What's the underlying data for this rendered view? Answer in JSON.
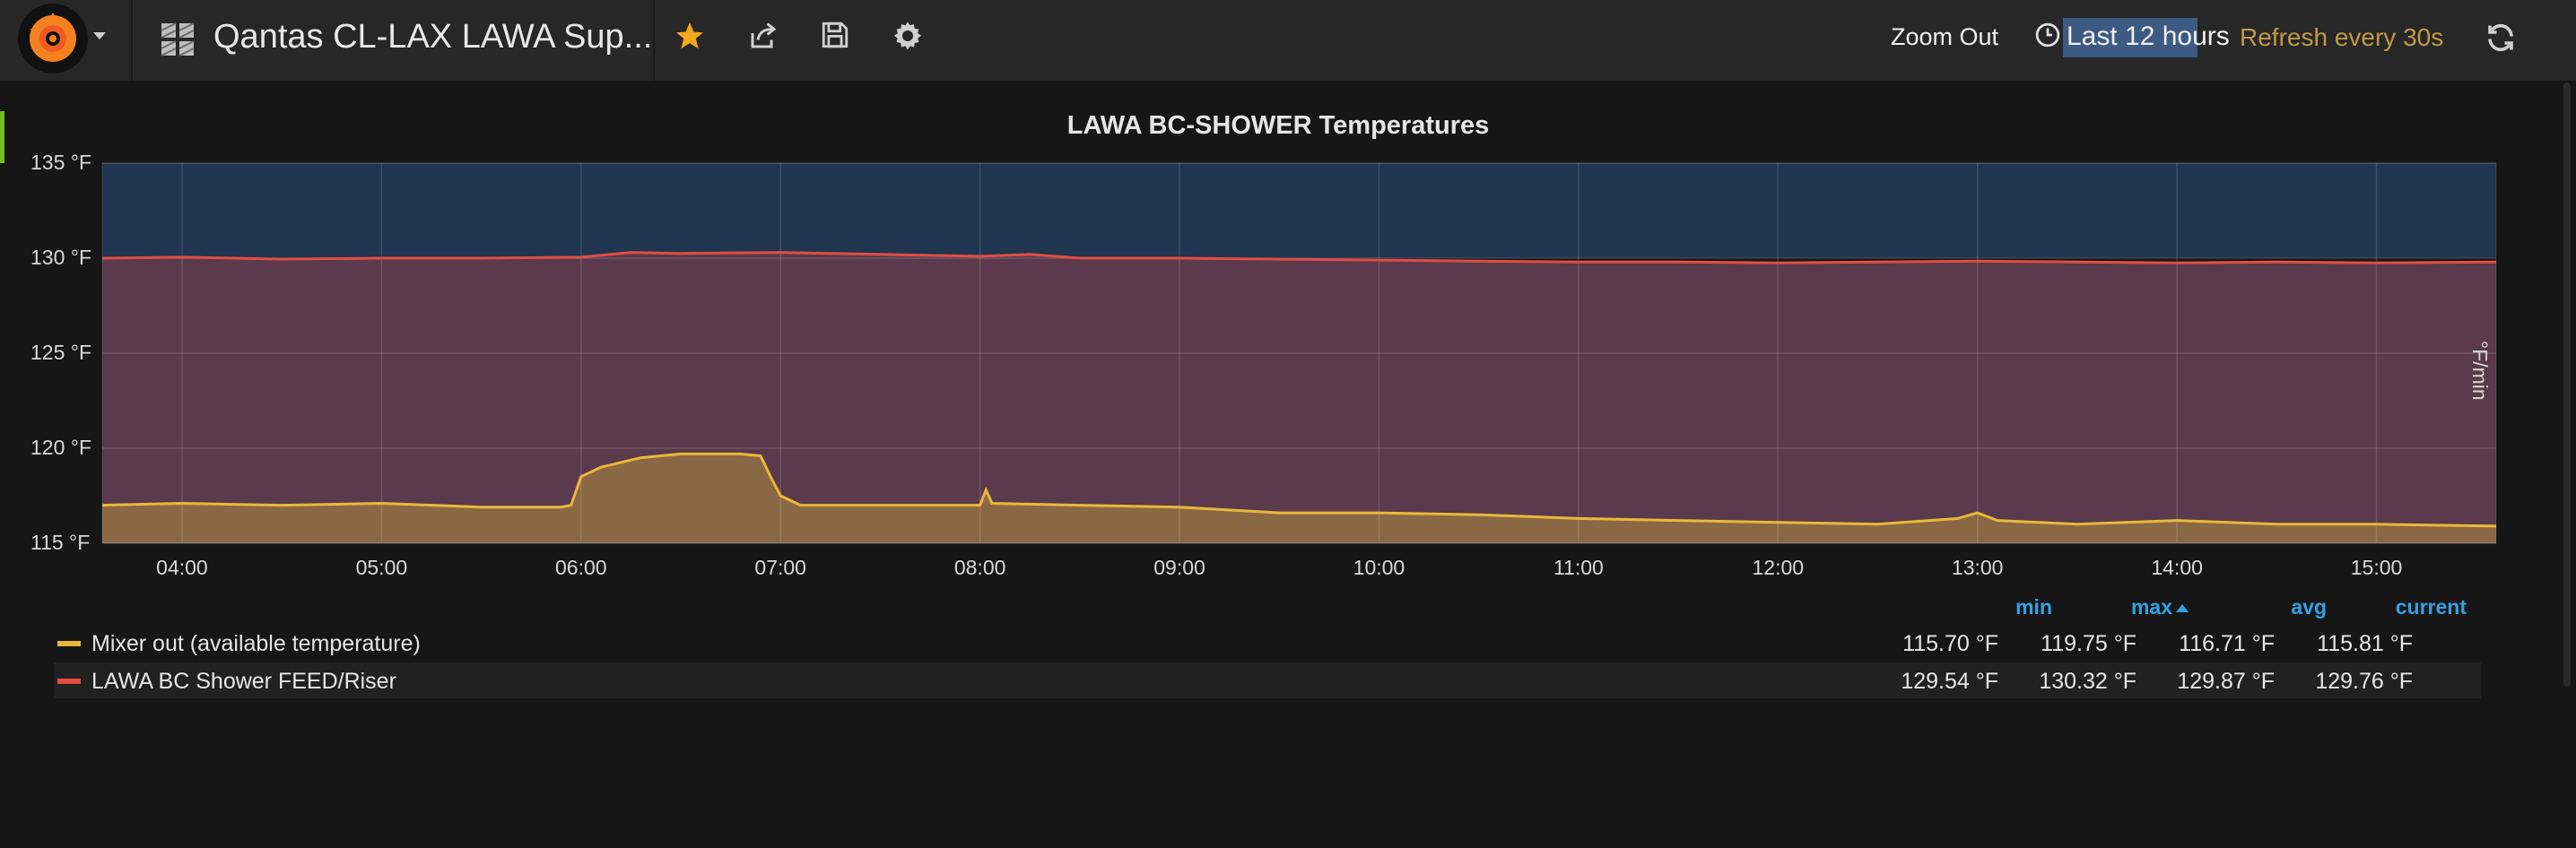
{
  "navbar": {
    "dashboard_title": "Qantas CL-LAX LAWA Sup...",
    "zoom_out_label": "Zoom Out",
    "time_range_label": "Last 12 hours",
    "refresh_label": "Refresh every 30s",
    "icons": [
      "grafana-logo-icon",
      "dashboard-grid-icon",
      "star-icon",
      "share-icon",
      "save-icon",
      "gear-icon",
      "clock-icon",
      "refresh-icon"
    ],
    "colors": {
      "star": "#f3a61f",
      "refresh_text": "#c19a47",
      "highlight": "#3c5a82"
    }
  },
  "panel": {
    "title": "LAWA BC-SHOWER Temperatures",
    "right_axis_label": "°F/min"
  },
  "chart_data": {
    "type": "area",
    "title": "LAWA BC-SHOWER Temperatures",
    "xlabel": "",
    "ylabel": "",
    "y2label": "°F/min",
    "ylim": [
      115,
      135
    ],
    "y_ticks": [
      "135 °F",
      "130 °F",
      "125 °F",
      "120 °F",
      "115 °F"
    ],
    "x_ticks": [
      "04:00",
      "05:00",
      "06:00",
      "07:00",
      "08:00",
      "09:00",
      "10:00",
      "11:00",
      "12:00",
      "13:00",
      "14:00",
      "15:00"
    ],
    "x_range_hours": [
      3.6,
      15.6
    ],
    "grid": true,
    "series": [
      {
        "name": "LAWA BC Shower FEED/Riser",
        "color": "#e24d42",
        "points": [
          [
            3.6,
            130.0
          ],
          [
            4.0,
            130.05
          ],
          [
            4.5,
            129.95
          ],
          [
            5.0,
            130.0
          ],
          [
            5.5,
            130.0
          ],
          [
            6.0,
            130.05
          ],
          [
            6.25,
            130.3
          ],
          [
            6.5,
            130.25
          ],
          [
            7.0,
            130.3
          ],
          [
            7.5,
            130.2
          ],
          [
            8.0,
            130.1
          ],
          [
            8.25,
            130.2
          ],
          [
            8.5,
            130.0
          ],
          [
            9.0,
            130.0
          ],
          [
            9.5,
            129.95
          ],
          [
            10.0,
            129.9
          ],
          [
            10.5,
            129.85
          ],
          [
            11.0,
            129.8
          ],
          [
            11.5,
            129.8
          ],
          [
            12.0,
            129.75
          ],
          [
            12.5,
            129.8
          ],
          [
            13.0,
            129.85
          ],
          [
            13.5,
            129.8
          ],
          [
            14.0,
            129.75
          ],
          [
            14.5,
            129.8
          ],
          [
            15.0,
            129.75
          ],
          [
            15.6,
            129.8
          ]
        ]
      },
      {
        "name": "Mixer out (available temperature)",
        "color": "#eab839",
        "points": [
          [
            3.6,
            117.0
          ],
          [
            4.0,
            117.1
          ],
          [
            4.5,
            117.0
          ],
          [
            5.0,
            117.1
          ],
          [
            5.5,
            116.9
          ],
          [
            5.9,
            116.9
          ],
          [
            5.95,
            117.0
          ],
          [
            6.0,
            118.5
          ],
          [
            6.1,
            119.0
          ],
          [
            6.3,
            119.5
          ],
          [
            6.5,
            119.7
          ],
          [
            6.8,
            119.7
          ],
          [
            6.9,
            119.6
          ],
          [
            6.95,
            118.5
          ],
          [
            7.0,
            117.5
          ],
          [
            7.1,
            117.0
          ],
          [
            7.5,
            117.0
          ],
          [
            8.0,
            117.0
          ],
          [
            8.03,
            117.8
          ],
          [
            8.06,
            117.1
          ],
          [
            8.5,
            117.0
          ],
          [
            9.0,
            116.9
          ],
          [
            9.5,
            116.6
          ],
          [
            10.0,
            116.6
          ],
          [
            10.5,
            116.5
          ],
          [
            11.0,
            116.3
          ],
          [
            11.5,
            116.2
          ],
          [
            12.0,
            116.1
          ],
          [
            12.5,
            116.0
          ],
          [
            12.9,
            116.3
          ],
          [
            13.0,
            116.6
          ],
          [
            13.1,
            116.2
          ],
          [
            13.5,
            116.0
          ],
          [
            14.0,
            116.2
          ],
          [
            14.5,
            116.0
          ],
          [
            15.0,
            116.0
          ],
          [
            15.6,
            115.9
          ]
        ]
      }
    ],
    "threshold_band": {
      "above": 130,
      "color": "#1f3550"
    }
  },
  "legend": {
    "columns": [
      "min",
      "max",
      "avg",
      "current"
    ],
    "sort_indicator": "sort-ascending-icon",
    "rows": [
      {
        "name": "Mixer out (available temperature)",
        "color": "#eab839",
        "min": "115.70 °F",
        "max": "119.75 °F",
        "avg": "116.71 °F",
        "current": "115.81 °F"
      },
      {
        "name": "LAWA BC Shower FEED/Riser",
        "color": "#e24d42",
        "min": "129.54 °F",
        "max": "130.32 °F",
        "avg": "129.87 °F",
        "current": "129.76 °F"
      }
    ]
  }
}
